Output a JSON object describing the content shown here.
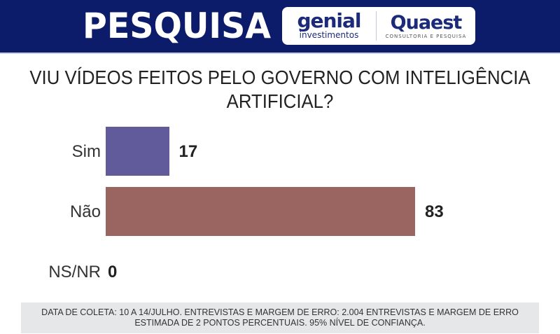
{
  "header": {
    "title": "PESQUISA",
    "logo_genial": "genial",
    "logo_genial_sub": "investimentos",
    "logo_quaest": "Quaest",
    "logo_quaest_sub": "CONSULTORIA E PESQUISA"
  },
  "chart_data": {
    "type": "bar",
    "orientation": "horizontal",
    "title": "VIU VÍDEOS FEITOS PELO GOVERNO COM INTELIGÊNCIA ARTIFICIAL?",
    "categories": [
      "Sim",
      "Não",
      "NS/NR"
    ],
    "values": [
      17,
      83,
      0
    ],
    "colors": [
      "#615a9b",
      "#9a6561",
      "#999999"
    ],
    "xlim": [
      0,
      100
    ],
    "grid": false
  },
  "footer": {
    "note": "DATA DE COLETA: 10 A 14/JULHO. ENTREVISTAS E MARGEM DE ERRO: 2.004 ENTREVISTAS E MARGEM DE ERRO ESTIMADA DE 2 PONTOS PERCENTUAIS. 95% NÍVEL DE CONFIANÇA."
  }
}
